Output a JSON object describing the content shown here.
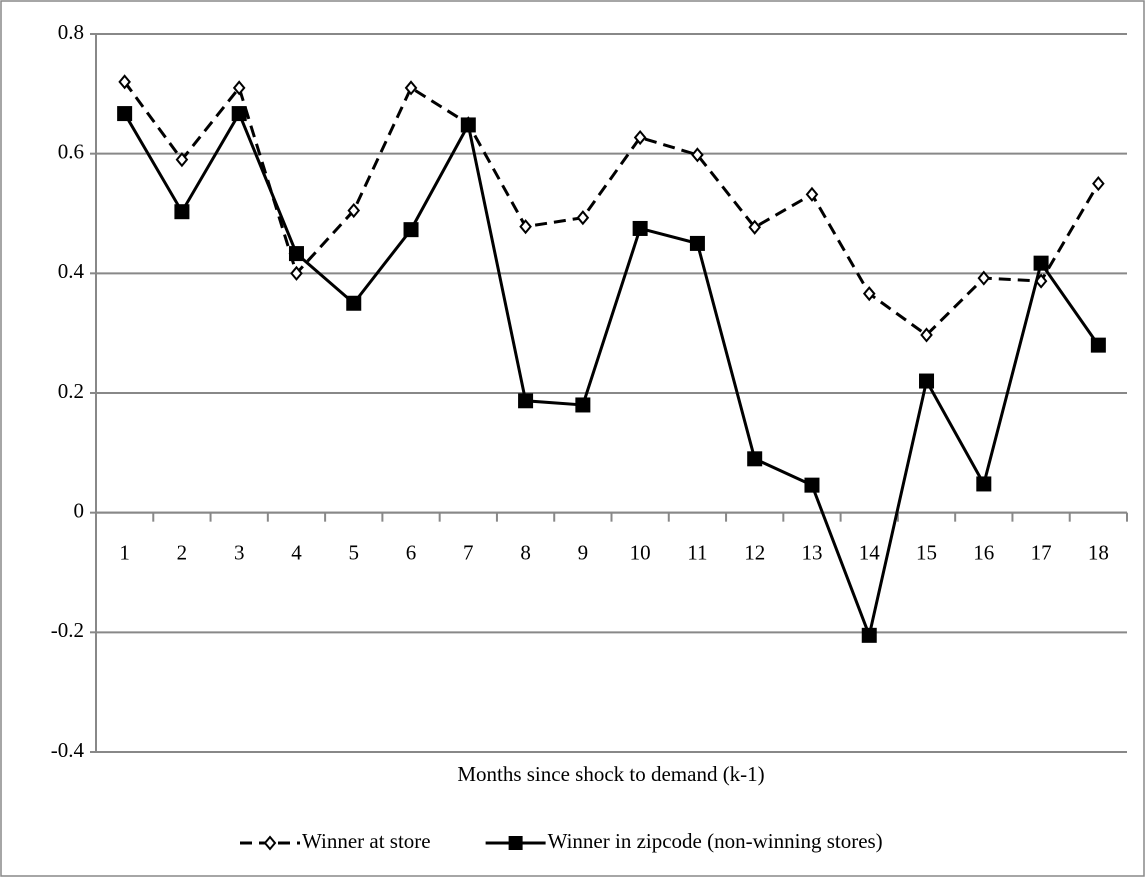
{
  "chart_data": {
    "type": "line",
    "categories": [
      "1",
      "2",
      "3",
      "4",
      "5",
      "6",
      "7",
      "8",
      "9",
      "10",
      "11",
      "12",
      "13",
      "14",
      "15",
      "16",
      "17",
      "18"
    ],
    "series": [
      {
        "name": "Winner at store",
        "color": "#000000",
        "dashed": true,
        "marker": "diamond",
        "values": [
          0.72,
          0.59,
          0.71,
          0.4,
          0.505,
          0.71,
          0.65,
          0.478,
          0.493,
          0.627,
          0.598,
          0.477,
          0.532,
          0.366,
          0.297,
          0.392,
          0.387,
          0.55
        ]
      },
      {
        "name": "Winner in zipcode (non-winning stores)",
        "color": "#000000",
        "dashed": false,
        "marker": "square",
        "values": [
          0.667,
          0.503,
          0.667,
          0.433,
          0.35,
          0.473,
          0.648,
          0.187,
          0.18,
          0.475,
          0.45,
          0.09,
          0.046,
          -0.205,
          0.22,
          0.048,
          0.417,
          0.28
        ]
      }
    ],
    "x_label": "Months since shock to demand (k-1)",
    "ylim": [
      -0.4,
      0.8
    ],
    "yticks": [
      -0.4,
      -0.2,
      0,
      0.2,
      0.4,
      0.6,
      0.8
    ],
    "grid": true,
    "legend": "bottom"
  }
}
